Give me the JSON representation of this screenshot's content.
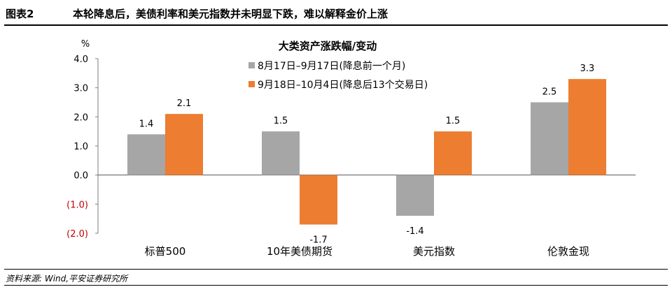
{
  "header": {
    "figure_label": "图表2",
    "title": "本轮降息后，美债利率和美元指数并未明显下跌，难以解释金价上涨"
  },
  "chart_data": {
    "type": "bar",
    "title": "大类资产涨跌幅/变动",
    "ylabel": "%",
    "ylim": [
      -2.0,
      4.0
    ],
    "yticks": [
      4.0,
      3.0,
      2.0,
      1.0,
      0.0,
      -1.0,
      -2.0
    ],
    "ytick_labels": [
      "4.0",
      "3.0",
      "2.0",
      "1.0",
      "0.0",
      "(1.0)",
      "(2.0)"
    ],
    "categories": [
      "标普500",
      "10年美债期货",
      "美元指数",
      "伦敦金现"
    ],
    "series": [
      {
        "name": "8月17日–9月17日(降息前一个月)",
        "values": [
          1.4,
          1.5,
          -1.4,
          2.5
        ],
        "labels": [
          "1.4",
          "1.5",
          "-1.4",
          "2.5"
        ],
        "color": "#a6a6a6"
      },
      {
        "name": "9月18日–10月4日(降息后13个交易日)",
        "values": [
          2.1,
          -1.7,
          1.5,
          3.3
        ],
        "labels": [
          "2.1",
          "-1.7",
          "1.5",
          "3.3"
        ],
        "color": "#ed7d31"
      }
    ],
    "legend_position": "top-center",
    "negative_tick_color": "#c00000"
  },
  "footer": {
    "source": "资料来源: Wind,平安证券研究所"
  }
}
